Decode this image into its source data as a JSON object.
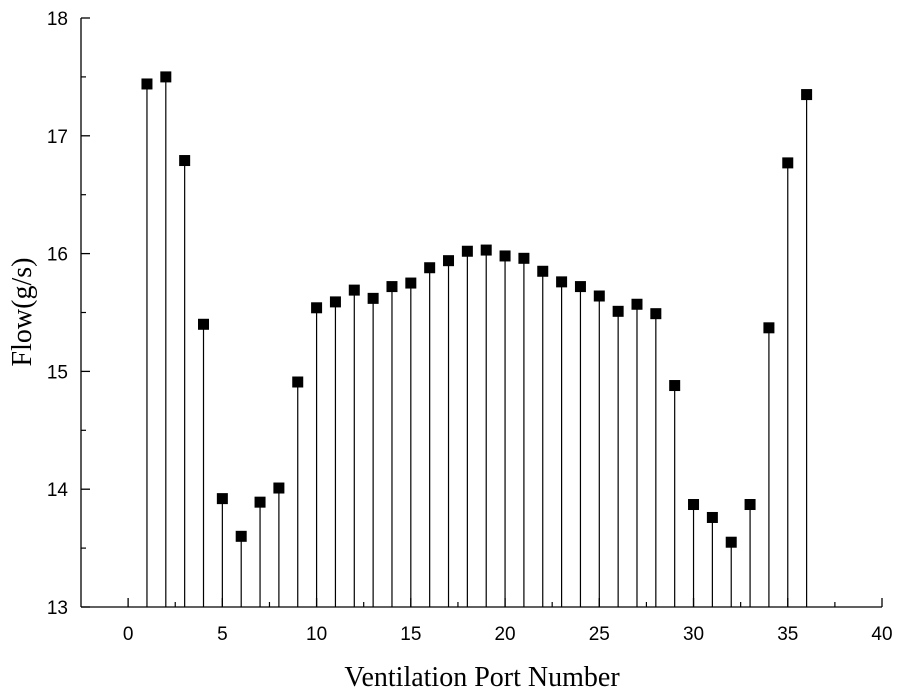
{
  "chart_data": {
    "type": "scatter",
    "style": "stem",
    "marker": "square",
    "title": "",
    "xlabel": "Ventilation Port Number",
    "ylabel": "Flow(g/s)",
    "xlim": [
      -2.5,
      40
    ],
    "ylim": [
      13,
      18
    ],
    "xticks": [
      "0",
      "5",
      "10",
      "15",
      "20",
      "25",
      "30",
      "35",
      "40"
    ],
    "yticks": [
      "13",
      "14",
      "15",
      "16",
      "17",
      "18"
    ],
    "grid": false,
    "color": "#000000",
    "series": [
      {
        "x": [
          1,
          2,
          3,
          4,
          5,
          6,
          7,
          8,
          9,
          10,
          11,
          12,
          13,
          14,
          15,
          16,
          17,
          18,
          19,
          20,
          21,
          22,
          23,
          24,
          25,
          26,
          27,
          28,
          29,
          30,
          31,
          32,
          33,
          34,
          35,
          36
        ],
        "y": [
          17.44,
          17.5,
          16.79,
          15.4,
          13.92,
          13.6,
          13.89,
          14.01,
          14.91,
          15.54,
          15.59,
          15.69,
          15.62,
          15.72,
          15.75,
          15.88,
          15.94,
          16.02,
          16.03,
          15.98,
          15.96,
          15.85,
          15.76,
          15.72,
          15.64,
          15.51,
          15.57,
          15.49,
          14.88,
          13.87,
          13.76,
          13.55,
          13.87,
          15.37,
          16.77,
          17.35
        ]
      }
    ]
  }
}
